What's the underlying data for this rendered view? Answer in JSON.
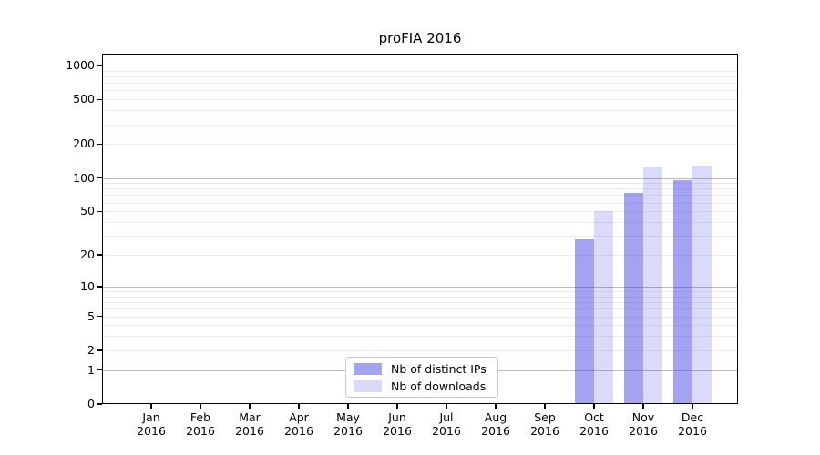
{
  "chart_data": {
    "type": "bar",
    "title": "proFIA 2016",
    "categories": [
      "Jan",
      "Feb",
      "Mar",
      "Apr",
      "May",
      "Jun",
      "Jul",
      "Aug",
      "Sep",
      "Oct",
      "Nov",
      "Dec"
    ],
    "category_year": "2016",
    "series": [
      {
        "name": "Nb of distinct IPs",
        "color": "rgba(59,59,227,0.47)",
        "values": [
          0,
          0,
          0,
          0,
          0,
          0,
          0,
          0,
          0,
          28,
          74,
          96
        ]
      },
      {
        "name": "Nb of downloads",
        "color": "rgba(59,59,227,0.19)",
        "values": [
          0,
          0,
          0,
          0,
          0,
          0,
          0,
          0,
          0,
          50,
          125,
          130
        ]
      }
    ],
    "xlabel": "",
    "ylabel": "",
    "yscale": "log1p",
    "yticks": [
      0,
      1,
      2,
      5,
      10,
      20,
      50,
      100,
      200,
      500,
      1000
    ],
    "ylim": [
      0,
      1270
    ],
    "grid": "on",
    "legend_position": "lower center",
    "colors": {
      "grid_minor": "#ececec",
      "grid_major": "#bcbcbc",
      "axis": "#000000",
      "background": "#ffffff"
    }
  }
}
